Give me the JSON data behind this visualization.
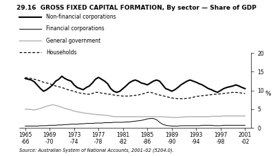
{
  "title": "29.16  GROSS FIXED CAPITAL FORMATION, By sector — Share of GDP",
  "source_text": "Source: Australian System of National Accounts, 2001–02 (5204.0).",
  "ylabel": "%",
  "ylim": [
    0,
    20
  ],
  "yticks": [
    0,
    5,
    10,
    15,
    20
  ],
  "legend_labels": [
    "Non-financial corporations",
    "Financial corporations",
    "General government",
    "Households"
  ],
  "x_years": [
    1965,
    1969,
    1973,
    1977,
    1981,
    1985,
    1989,
    1993,
    1997,
    2001
  ],
  "x_lower": [
    "-66",
    "-70",
    "-74",
    "-78",
    "-82",
    "-86",
    "-90",
    "-94",
    "-98",
    "-02"
  ],
  "non_financial": [
    13.2,
    13.0,
    12.8,
    12.3,
    11.4,
    10.5,
    9.8,
    10.2,
    10.8,
    11.5,
    12.5,
    13.0,
    13.8,
    13.2,
    12.8,
    12.5,
    11.5,
    10.8,
    10.5,
    10.2,
    10.8,
    11.2,
    12.0,
    13.0,
    13.5,
    13.0,
    12.5,
    11.8,
    10.5,
    9.8,
    9.5,
    9.8,
    10.5,
    11.2,
    12.0,
    12.5,
    12.8,
    12.5,
    12.0,
    11.8,
    11.5,
    12.0,
    12.5,
    12.8,
    12.5,
    11.5,
    10.5,
    10.2,
    9.8,
    10.2,
    10.8,
    11.5,
    12.0,
    12.5,
    12.8,
    12.5,
    12.2,
    11.8,
    11.5,
    11.0,
    10.5,
    10.2,
    9.8,
    9.5,
    10.0,
    10.5,
    10.8,
    11.0,
    11.2,
    11.5,
    11.2,
    10.8,
    10.5
  ],
  "financial": [
    0.5,
    0.5,
    0.5,
    0.5,
    0.5,
    0.6,
    0.6,
    0.6,
    0.7,
    0.7,
    0.7,
    0.8,
    0.8,
    0.9,
    0.9,
    1.0,
    1.0,
    1.0,
    1.1,
    1.1,
    1.2,
    1.2,
    1.2,
    1.3,
    1.3,
    1.3,
    1.4,
    1.4,
    1.4,
    1.5,
    1.5,
    1.5,
    1.5,
    1.6,
    1.6,
    1.7,
    1.8,
    1.9,
    2.0,
    2.2,
    2.4,
    2.5,
    2.5,
    2.2,
    1.5,
    1.0,
    0.7,
    0.6,
    0.5,
    0.5,
    0.5,
    0.6,
    0.6,
    0.6,
    0.6,
    0.6,
    0.6,
    0.6,
    0.7,
    0.7,
    0.7,
    0.7,
    0.6,
    0.6,
    0.6,
    0.7,
    0.7,
    0.7,
    0.7,
    0.7,
    0.7,
    0.7,
    0.7
  ],
  "general_govt": [
    5.0,
    5.0,
    4.9,
    4.8,
    5.0,
    5.2,
    5.5,
    5.8,
    6.0,
    6.2,
    6.0,
    5.8,
    5.5,
    5.2,
    5.0,
    4.8,
    4.5,
    4.3,
    4.2,
    4.0,
    3.9,
    3.8,
    3.7,
    3.6,
    3.5,
    3.5,
    3.4,
    3.3,
    3.2,
    3.0,
    3.0,
    3.0,
    3.0,
    3.0,
    3.0,
    3.0,
    3.0,
    3.0,
    3.0,
    3.0,
    3.0,
    3.0,
    3.0,
    3.0,
    3.0,
    3.0,
    2.9,
    2.9,
    2.8,
    2.8,
    2.8,
    2.9,
    2.9,
    3.0,
    3.0,
    3.0,
    3.0,
    3.0,
    3.0,
    3.0,
    3.0,
    3.1,
    3.1,
    3.1,
    3.1,
    3.2,
    3.2,
    3.2,
    3.2,
    3.2,
    3.2,
    3.2,
    3.2
  ],
  "households": [
    13.5,
    13.3,
    13.2,
    13.0,
    12.8,
    12.5,
    12.2,
    12.0,
    11.8,
    11.5,
    11.2,
    11.0,
    10.8,
    10.5,
    10.2,
    10.0,
    9.8,
    9.5,
    9.3,
    9.2,
    9.0,
    9.0,
    9.2,
    9.5,
    9.5,
    9.3,
    9.2,
    9.0,
    9.0,
    8.8,
    8.7,
    8.6,
    8.5,
    8.5,
    8.5,
    8.6,
    8.7,
    8.8,
    9.0,
    9.2,
    9.5,
    9.5,
    9.3,
    9.0,
    8.8,
    8.6,
    8.4,
    8.2,
    8.0,
    7.9,
    7.8,
    7.8,
    7.8,
    7.9,
    8.0,
    8.2,
    8.4,
    8.5,
    8.6,
    8.7,
    8.8,
    8.9,
    9.0,
    9.0,
    9.1,
    9.2,
    9.3,
    9.4,
    9.5,
    9.5,
    9.4,
    9.3,
    9.2
  ],
  "background_color": "#ffffff",
  "non_financial_color": "#000000",
  "financial_color": "#000000",
  "general_govt_color": "#b0b0b0",
  "households_color": "#000000",
  "title_fontsize": 6.5,
  "legend_fontsize": 5.5,
  "tick_fontsize": 5.5
}
